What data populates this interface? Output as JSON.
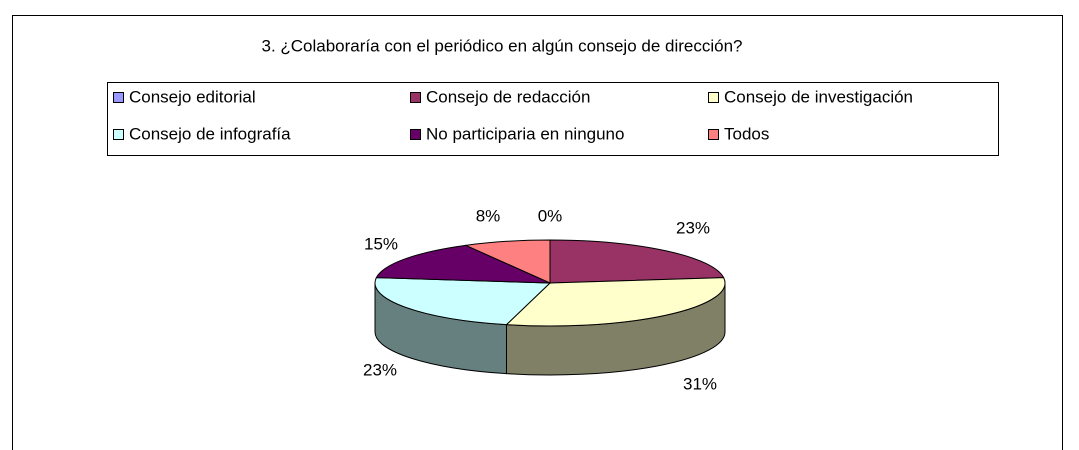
{
  "chart_data": {
    "type": "pie",
    "title": "3. ¿Colaboraría con el periódico en algún consejo de dirección?",
    "categories": [
      "Consejo editorial",
      "Consejo de redacción",
      "Consejo de investigación",
      "Consejo de infografía",
      "No participaria en ninguno",
      "Todos"
    ],
    "values": [
      0,
      23,
      31,
      23,
      15,
      8
    ],
    "value_labels": [
      "0%",
      "23%",
      "31%",
      "23%",
      "15%",
      "8%"
    ],
    "colors": [
      "#9999ff",
      "#993366",
      "#ffffcc",
      "#ccffff",
      "#660066",
      "#ff8080"
    ],
    "legend": "top"
  }
}
